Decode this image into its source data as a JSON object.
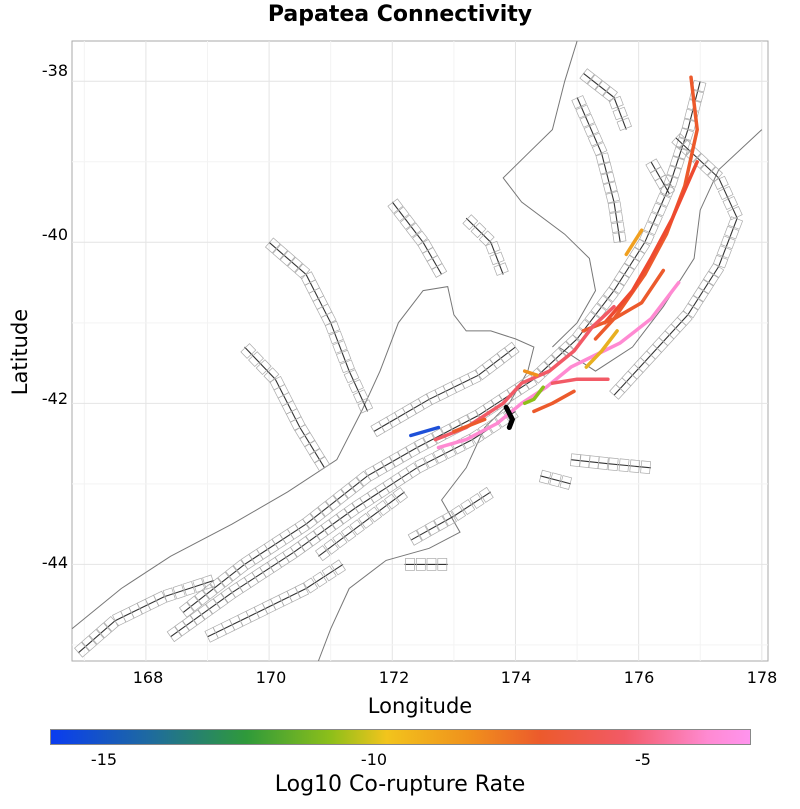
{
  "title": "Papatea Connectivity",
  "x_axis": {
    "label": "Longitude",
    "ticks": [
      "168",
      "170",
      "172",
      "174",
      "176",
      "178"
    ],
    "range": [
      166.8,
      178.1
    ]
  },
  "y_axis": {
    "label": "Latitude",
    "ticks": [
      "-38",
      "-40",
      "-42",
      "-44"
    ],
    "range": [
      -45.2,
      -37.5
    ]
  },
  "colorbar": {
    "label": "Log10 Co-rupture Rate",
    "ticks": [
      "-15",
      "-10",
      "-5"
    ],
    "tick_values": [
      -15,
      -10,
      -5
    ],
    "range": [
      -16,
      -3
    ],
    "colors": [
      "#0a3cf0",
      "#2f9a3a",
      "#f2c41c",
      "#ec5a2c",
      "#f25a66",
      "#ff94ee"
    ]
  },
  "colors": {
    "fault": "#333333",
    "trace_box": "#aaaaaa",
    "coast": "#777777",
    "source": "#000000"
  },
  "ruptures": [
    {
      "color": "#ec5a2c",
      "pts": [
        [
          176.85,
          -37.95
        ],
        [
          176.95,
          -38.6
        ],
        [
          176.75,
          -39.3
        ],
        [
          176.45,
          -39.9
        ],
        [
          176.1,
          -40.4
        ],
        [
          175.6,
          -40.95
        ],
        [
          175.3,
          -41.2
        ]
      ]
    },
    {
      "color": "#ee4a30",
      "pts": [
        [
          176.95,
          -39.0
        ],
        [
          176.55,
          -39.7
        ],
        [
          176.2,
          -40.2
        ],
        [
          175.9,
          -40.6
        ],
        [
          175.45,
          -41.0
        ]
      ]
    },
    {
      "color": "#f0a020",
      "pts": [
        [
          176.05,
          -39.85
        ],
        [
          175.8,
          -40.15
        ]
      ]
    },
    {
      "color": "#ec5a2c",
      "pts": [
        [
          176.4,
          -40.35
        ],
        [
          176.05,
          -40.75
        ],
        [
          175.6,
          -40.95
        ],
        [
          175.1,
          -41.1
        ]
      ]
    },
    {
      "color": "#f25a66",
      "pts": [
        [
          175.6,
          -40.8
        ],
        [
          175.25,
          -41.05
        ],
        [
          174.95,
          -41.35
        ],
        [
          174.55,
          -41.6
        ],
        [
          174.1,
          -41.75
        ],
        [
          173.8,
          -42.0
        ],
        [
          173.2,
          -42.3
        ],
        [
          172.7,
          -42.45
        ]
      ]
    },
    {
      "color": "#ff8ad2",
      "pts": [
        [
          176.65,
          -40.5
        ],
        [
          176.2,
          -40.95
        ],
        [
          175.7,
          -41.25
        ],
        [
          175.3,
          -41.4
        ],
        [
          174.9,
          -41.55
        ],
        [
          174.5,
          -41.8
        ],
        [
          174.1,
          -42.0
        ],
        [
          173.7,
          -42.25
        ],
        [
          173.2,
          -42.45
        ],
        [
          172.75,
          -42.55
        ]
      ]
    },
    {
      "color": "#e8b020",
      "pts": [
        [
          175.65,
          -41.1
        ],
        [
          175.4,
          -41.35
        ],
        [
          175.15,
          -41.55
        ]
      ]
    },
    {
      "color": "#f25a66",
      "pts": [
        [
          175.5,
          -41.7
        ],
        [
          175.0,
          -41.7
        ],
        [
          174.6,
          -41.75
        ]
      ]
    },
    {
      "color": "#ec5a2c",
      "pts": [
        [
          174.95,
          -41.85
        ],
        [
          174.6,
          -42.0
        ],
        [
          174.3,
          -42.1
        ]
      ]
    },
    {
      "color": "#8dbf1a",
      "pts": [
        [
          174.45,
          -41.8
        ],
        [
          174.3,
          -41.95
        ],
        [
          174.15,
          -42.0
        ]
      ]
    },
    {
      "color": "#f0901c",
      "pts": [
        [
          174.15,
          -41.6
        ],
        [
          174.35,
          -41.65
        ]
      ]
    },
    {
      "color": "#1e50d8",
      "pts": [
        [
          172.3,
          -42.4
        ],
        [
          172.75,
          -42.3
        ]
      ]
    },
    {
      "color": "#ec5a2c",
      "pts": [
        [
          173.0,
          -42.35
        ],
        [
          173.5,
          -42.2
        ]
      ]
    }
  ],
  "source_rupture": {
    "pts": [
      [
        173.85,
        -42.05
      ],
      [
        173.95,
        -42.2
      ],
      [
        173.9,
        -42.3
      ]
    ]
  },
  "coast": [
    [
      166.8,
      -44.8
    ],
    [
      167.6,
      -44.3
    ],
    [
      168.4,
      -43.9
    ],
    [
      169.4,
      -43.5
    ],
    [
      170.3,
      -43.1
    ],
    [
      171.1,
      -42.7
    ],
    [
      171.5,
      -42.1
    ],
    [
      171.8,
      -41.6
    ],
    [
      172.1,
      -41.0
    ],
    [
      172.5,
      -40.6
    ],
    [
      172.9,
      -40.55
    ],
    [
      173.0,
      -40.9
    ],
    [
      173.2,
      -41.1
    ],
    [
      173.6,
      -41.1
    ],
    [
      174.0,
      -41.2
    ],
    [
      174.3,
      -41.3
    ],
    [
      174.2,
      -41.6
    ],
    [
      173.9,
      -42.0
    ],
    [
      173.5,
      -42.3
    ],
    [
      173.2,
      -42.8
    ],
    [
      172.8,
      -43.2
    ],
    [
      173.1,
      -43.6
    ],
    [
      172.6,
      -43.8
    ],
    [
      171.9,
      -43.95
    ],
    [
      171.3,
      -44.3
    ],
    [
      171.0,
      -44.8
    ],
    [
      170.8,
      -45.2
    ]
  ],
  "coast_north": [
    [
      174.6,
      -41.3
    ],
    [
      175.0,
      -41.0
    ],
    [
      175.3,
      -40.6
    ],
    [
      175.2,
      -40.2
    ],
    [
      174.8,
      -39.9
    ],
    [
      174.1,
      -39.5
    ],
    [
      173.8,
      -39.2
    ],
    [
      174.2,
      -38.9
    ],
    [
      174.6,
      -38.6
    ],
    [
      174.8,
      -38.0
    ],
    [
      175.0,
      -37.5
    ]
  ],
  "coast_east": [
    [
      174.7,
      -41.3
    ],
    [
      175.3,
      -41.6
    ],
    [
      175.9,
      -41.3
    ],
    [
      176.4,
      -40.8
    ],
    [
      176.9,
      -40.2
    ],
    [
      177.0,
      -39.6
    ],
    [
      177.3,
      -39.1
    ],
    [
      178.0,
      -38.6
    ]
  ],
  "fault_strands": [
    [
      [
        168.6,
        -44.6
      ],
      [
        169.6,
        -44.0
      ],
      [
        170.6,
        -43.5
      ],
      [
        171.6,
        -42.9
      ],
      [
        172.4,
        -42.55
      ],
      [
        173.4,
        -42.15
      ],
      [
        174.3,
        -41.7
      ],
      [
        175.0,
        -41.2
      ],
      [
        175.6,
        -40.6
      ],
      [
        176.1,
        -40.0
      ],
      [
        176.5,
        -39.3
      ],
      [
        176.8,
        -38.6
      ],
      [
        177.0,
        -38.0
      ]
    ],
    [
      [
        168.4,
        -44.9
      ],
      [
        169.4,
        -44.35
      ],
      [
        170.4,
        -43.85
      ],
      [
        171.4,
        -43.3
      ],
      [
        172.4,
        -42.8
      ],
      [
        173.3,
        -42.45
      ],
      [
        174.0,
        -42.1
      ]
    ],
    [
      [
        171.7,
        -42.35
      ],
      [
        172.6,
        -41.95
      ],
      [
        173.4,
        -41.65
      ],
      [
        174.0,
        -41.3
      ]
    ],
    [
      [
        170.0,
        -40.0
      ],
      [
        170.6,
        -40.4
      ],
      [
        171.0,
        -41.0
      ],
      [
        171.3,
        -41.6
      ],
      [
        171.6,
        -42.1
      ]
    ],
    [
      [
        169.6,
        -41.3
      ],
      [
        170.1,
        -41.7
      ],
      [
        170.5,
        -42.3
      ],
      [
        170.9,
        -42.8
      ]
    ],
    [
      [
        172.0,
        -39.5
      ],
      [
        172.5,
        -40.0
      ],
      [
        172.8,
        -40.4
      ]
    ],
    [
      [
        175.0,
        -38.2
      ],
      [
        175.4,
        -38.9
      ],
      [
        175.6,
        -39.5
      ],
      [
        175.7,
        -40.0
      ]
    ],
    [
      [
        176.6,
        -38.7
      ],
      [
        177.3,
        -39.2
      ],
      [
        177.6,
        -39.7
      ],
      [
        177.3,
        -40.3
      ],
      [
        176.8,
        -40.9
      ],
      [
        176.2,
        -41.4
      ],
      [
        175.6,
        -41.9
      ]
    ],
    [
      [
        166.9,
        -45.1
      ],
      [
        167.5,
        -44.7
      ],
      [
        168.3,
        -44.4
      ],
      [
        169.1,
        -44.2
      ]
    ],
    [
      [
        169.0,
        -44.9
      ],
      [
        169.8,
        -44.6
      ],
      [
        170.6,
        -44.3
      ],
      [
        171.2,
        -44.0
      ]
    ],
    [
      [
        172.3,
        -43.7
      ],
      [
        173.0,
        -43.4
      ],
      [
        173.6,
        -43.1
      ]
    ],
    [
      [
        174.9,
        -42.7
      ],
      [
        175.5,
        -42.75
      ],
      [
        176.2,
        -42.8
      ]
    ],
    [
      [
        174.4,
        -42.9
      ],
      [
        174.9,
        -43.0
      ]
    ],
    [
      [
        172.2,
        -44.0
      ],
      [
        172.9,
        -44.0
      ]
    ],
    [
      [
        175.1,
        -37.9
      ],
      [
        175.6,
        -38.2
      ],
      [
        175.8,
        -38.6
      ]
    ],
    [
      [
        176.2,
        -39.0
      ],
      [
        176.5,
        -39.4
      ]
    ],
    [
      [
        173.2,
        -39.7
      ],
      [
        173.6,
        -40.0
      ],
      [
        173.8,
        -40.4
      ]
    ],
    [
      [
        170.8,
        -43.9
      ],
      [
        171.5,
        -43.5
      ],
      [
        172.2,
        -43.1
      ]
    ]
  ]
}
